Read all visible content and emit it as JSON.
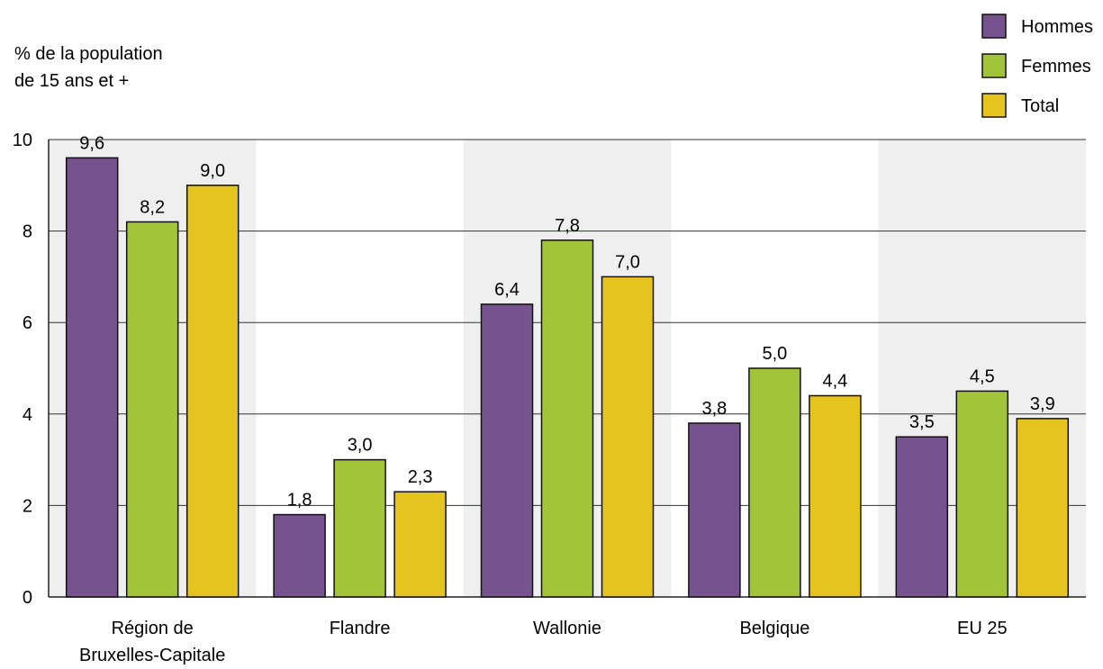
{
  "chart_data": {
    "type": "bar",
    "ylabel": [
      "% de la population",
      "de 15 ans et +"
    ],
    "ylim": [
      0,
      10
    ],
    "yticks": [
      "0",
      "2",
      "4",
      "6",
      "8",
      "10"
    ],
    "categories": [
      [
        "Région de",
        "Bruxelles-Capitale"
      ],
      [
        "Flandre"
      ],
      [
        "Wallonie"
      ],
      [
        "Belgique"
      ],
      [
        "EU 25"
      ]
    ],
    "series": [
      {
        "name": "Hommes",
        "color": "#76528f",
        "values": [
          9.6,
          1.8,
          6.4,
          3.8,
          3.5
        ],
        "labels": [
          "9,6",
          "1,8",
          "6,4",
          "3,8",
          "3,5"
        ]
      },
      {
        "name": "Femmes",
        "color": "#a2c43a",
        "values": [
          8.2,
          3.0,
          7.8,
          5.0,
          4.5
        ],
        "labels": [
          "8,2",
          "3,0",
          "7,8",
          "5,0",
          "4,5"
        ]
      },
      {
        "name": "Total",
        "color": "#e6c41f",
        "values": [
          9.0,
          2.3,
          7.0,
          4.4,
          3.9
        ],
        "labels": [
          "9,0",
          "2,3",
          "7,0",
          "4,4",
          "3,9"
        ]
      }
    ],
    "grid": true,
    "band_color": "#efefef",
    "legend_position": "top-right"
  }
}
